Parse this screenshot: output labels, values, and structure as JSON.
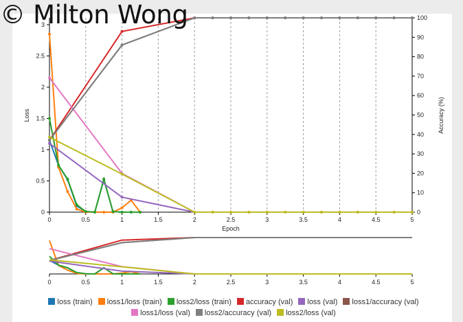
{
  "watermark": "© Milton Wong",
  "chart_data": [
    {
      "type": "line",
      "name": "main",
      "xlabel": "Epoch",
      "ylabel": "Loss",
      "y2label": "Accuracy (%)",
      "xlim": [
        0,
        5
      ],
      "ylim": [
        0,
        3.1
      ],
      "y2lim": [
        0,
        100
      ],
      "x_ticks": [
        "0",
        "0.5",
        "1",
        "1.5",
        "2",
        "2.5",
        "3",
        "3.5",
        "4",
        "4.5",
        "5"
      ],
      "y_ticks": [
        "0",
        "0.5",
        "1",
        "1.5",
        "2",
        "2.5",
        "3"
      ],
      "y2_ticks": [
        "0",
        "10",
        "20",
        "30",
        "40",
        "50",
        "60",
        "70",
        "80",
        "90",
        "100"
      ],
      "grid": "vertical dashed",
      "legend": "bottom",
      "series": [
        {
          "name": "loss (train)",
          "color": "#1f77b4",
          "axis": "y",
          "x": [
            0,
            0.125,
            0.25,
            0.375,
            0.5,
            0.625,
            0.75,
            0.875,
            1,
            1.125,
            1.25
          ],
          "y": [
            1.15,
            0.75,
            0.52,
            0.1,
            0.01,
            0.0,
            0.52,
            0.01,
            0.0,
            0.0,
            0.0
          ]
        },
        {
          "name": "loss1/loss (train)",
          "color": "#ff7f0e",
          "axis": "y",
          "x": [
            0,
            0.125,
            0.25,
            0.375,
            0.5,
            0.625,
            0.75,
            0.875,
            1,
            1.125,
            1.25
          ],
          "y": [
            2.85,
            0.72,
            0.33,
            0.05,
            0.0,
            0.0,
            0.0,
            0.0,
            0.07,
            0.19,
            0.0
          ]
        },
        {
          "name": "loss2/loss (train)",
          "color": "#2ca02c",
          "axis": "y",
          "x": [
            0,
            0.125,
            0.25,
            0.375,
            0.5,
            0.625,
            0.75,
            0.875,
            1,
            1.125,
            1.25
          ],
          "y": [
            1.5,
            0.75,
            0.53,
            0.12,
            0.01,
            0.0,
            0.53,
            0.01,
            0.0,
            0.0,
            0.0
          ]
        },
        {
          "name": "accuracy (val)",
          "color": "#d62728",
          "axis": "y2",
          "x": [
            0,
            1,
            2,
            2.25,
            2.5,
            2.75,
            3,
            3.25,
            3.5,
            3.75,
            4,
            4.25,
            4.5,
            4.75,
            5
          ],
          "y": [
            37,
            93,
            100,
            100,
            100,
            100,
            100,
            100,
            100,
            100,
            100,
            100,
            100,
            100,
            100
          ]
        },
        {
          "name": "loss (val)",
          "color": "#9467bd",
          "axis": "y",
          "x": [
            0,
            1,
            2,
            2.25,
            2.5,
            2.75,
            3,
            3.25,
            3.5,
            3.75,
            4,
            4.25,
            4.5,
            4.75,
            5
          ],
          "y": [
            1.1,
            0.24,
            0.0,
            0,
            0,
            0,
            0,
            0,
            0,
            0,
            0,
            0,
            0,
            0,
            0
          ]
        },
        {
          "name": "loss1/accuracy (val)",
          "color": "#8c564b",
          "axis": "y2",
          "x": [
            0,
            1,
            2,
            2.25,
            2.5,
            2.75,
            3,
            3.25,
            3.5,
            3.75,
            4,
            4.25,
            4.5,
            4.75,
            5
          ],
          "y": [
            37,
            86,
            100,
            100,
            100,
            100,
            100,
            100,
            100,
            100,
            100,
            100,
            100,
            100,
            100
          ]
        },
        {
          "name": "loss1/loss (val)",
          "color": "#e377c2",
          "axis": "y",
          "x": [
            0,
            1,
            2,
            2.25,
            2.5,
            2.75,
            3,
            3.25,
            3.5,
            3.75,
            4,
            4.25,
            4.5,
            4.75,
            5
          ],
          "y": [
            2.15,
            0.62,
            0.0,
            0,
            0,
            0,
            0,
            0,
            0,
            0,
            0,
            0,
            0,
            0,
            0
          ]
        },
        {
          "name": "loss2/accuracy (val)",
          "color": "#7f7f7f",
          "axis": "y2",
          "x": [
            0,
            1,
            2,
            2.25,
            2.5,
            2.75,
            3,
            3.25,
            3.5,
            3.75,
            4,
            4.25,
            4.5,
            4.75,
            5
          ],
          "y": [
            37,
            86,
            100,
            100,
            100,
            100,
            100,
            100,
            100,
            100,
            100,
            100,
            100,
            100,
            100
          ]
        },
        {
          "name": "loss2/loss (val)",
          "color": "#bcbd22",
          "axis": "y",
          "x": [
            0,
            1,
            2,
            2.25,
            2.5,
            2.75,
            3,
            3.25,
            3.5,
            3.75,
            4,
            4.25,
            4.5,
            4.75,
            5
          ],
          "y": [
            1.2,
            0.61,
            0.0,
            0,
            0,
            0,
            0,
            0,
            0,
            0,
            0,
            0,
            0,
            0,
            0
          ]
        }
      ]
    },
    {
      "type": "line",
      "name": "overview",
      "xlim": [
        0,
        5
      ],
      "x_ticks": [
        "0",
        "0.5",
        "1",
        "1.5",
        "2",
        "2.5",
        "3",
        "3.5",
        "4",
        "4.5",
        "5"
      ],
      "note": "overview (brush) chart showing all series"
    }
  ]
}
